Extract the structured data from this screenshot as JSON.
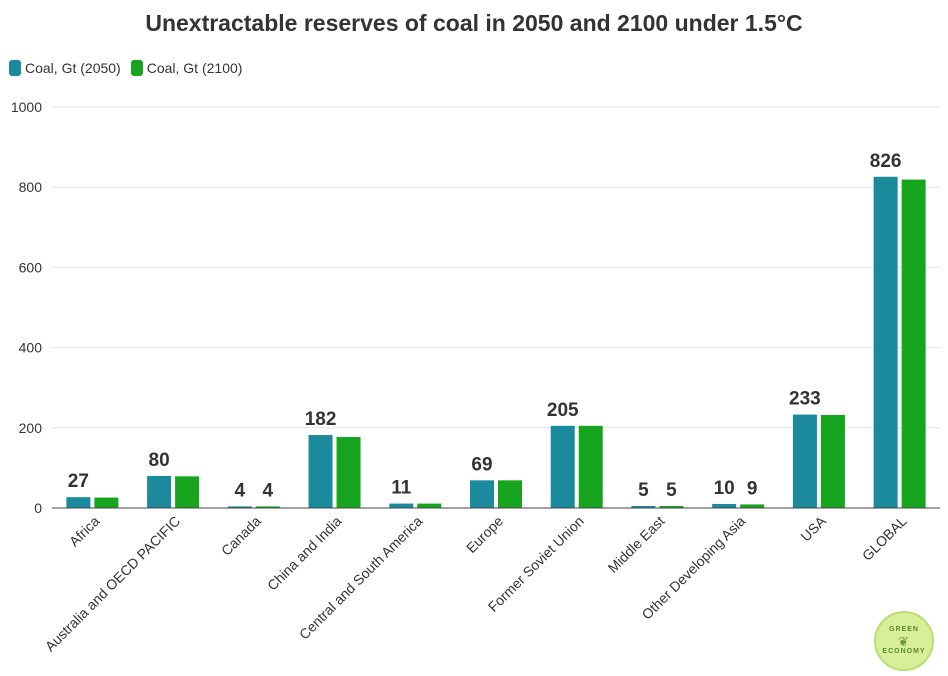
{
  "chart_data": {
    "type": "bar",
    "title": "Unextractable reserves of coal in 2050 and 2100 under 1.5°C",
    "xlabel": "",
    "ylabel": "",
    "ylim": [
      0,
      1000
    ],
    "yticks": [
      0,
      200,
      400,
      600,
      800,
      1000
    ],
    "grid": true,
    "legend_position": "top-left",
    "categories": [
      "Africa",
      "Australia and OECD PACIFIC",
      "Canada",
      "China and India",
      "Central and South America",
      "Europe",
      "Former Soviet Union",
      "Middle East",
      "Other Developing Asia",
      "USA",
      "GLOBAL"
    ],
    "series": [
      {
        "name": "Coal, Gt (2050)",
        "color": "#1a8a9c",
        "values": [
          27,
          80,
          4,
          182,
          11,
          69,
          205,
          5,
          10,
          233,
          826
        ]
      },
      {
        "name": "Coal, Gt (2100)",
        "color": "#17a51f",
        "values": [
          26,
          79,
          4,
          177,
          11,
          69,
          205,
          5,
          9,
          232,
          819
        ]
      }
    ],
    "data_labels": [
      {
        "category_index": 0,
        "text": "27"
      },
      {
        "category_index": 1,
        "text": "80"
      },
      {
        "category_index": 2,
        "text": "4",
        "series_index": 0
      },
      {
        "category_index": 2,
        "text": "4",
        "series_index": 1
      },
      {
        "category_index": 3,
        "text": "182"
      },
      {
        "category_index": 4,
        "text": "11"
      },
      {
        "category_index": 5,
        "text": "69"
      },
      {
        "category_index": 6,
        "text": "205"
      },
      {
        "category_index": 7,
        "text": "5",
        "series_index": 0
      },
      {
        "category_index": 7,
        "text": "5",
        "series_index": 1
      },
      {
        "category_index": 8,
        "text": "10",
        "series_index": 0
      },
      {
        "category_index": 8,
        "text": "9",
        "series_index": 1
      },
      {
        "category_index": 9,
        "text": "233"
      },
      {
        "category_index": 10,
        "text": "826"
      }
    ]
  },
  "logo": {
    "text_top": "GREEN",
    "text_bottom": "ECONOMY"
  }
}
